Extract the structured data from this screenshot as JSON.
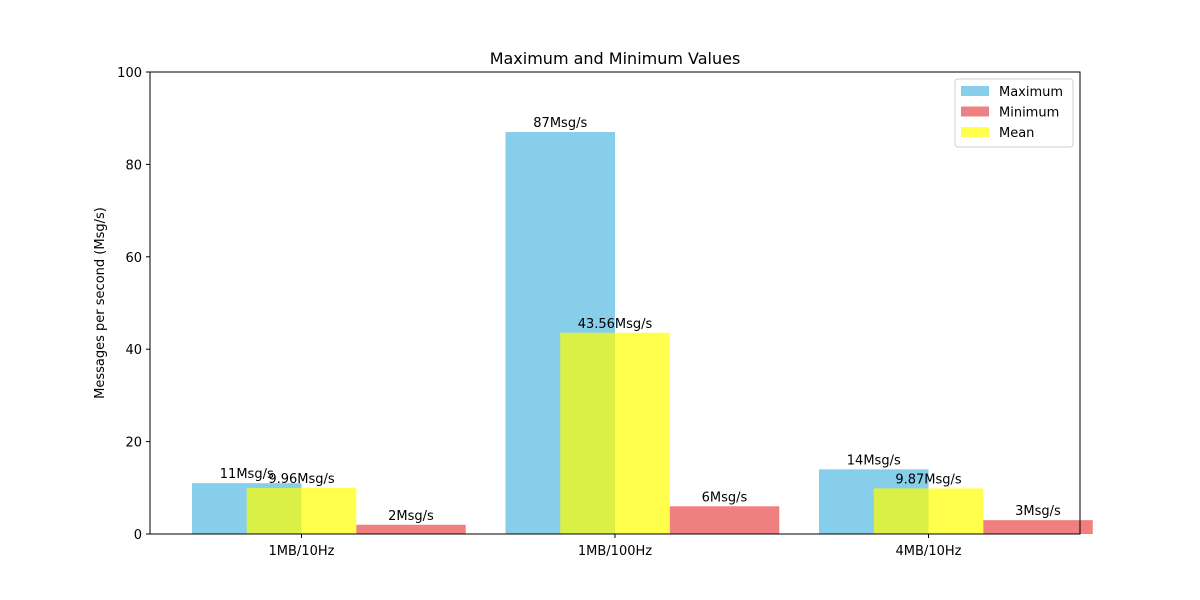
{
  "chart_data": {
    "type": "bar",
    "title": "Maximum and Minimum Values",
    "xlabel": "",
    "ylabel": "Messages per second (Msg/s)",
    "categories": [
      "1MB/10Hz",
      "1MB/100Hz",
      "4MB/10Hz"
    ],
    "ylim": [
      0,
      100
    ],
    "yticks": [
      0,
      20,
      40,
      60,
      80,
      100
    ],
    "grid": false,
    "legend_position": "top-right",
    "series": [
      {
        "name": "Maximum",
        "color": "#87ceeb",
        "values": [
          11,
          87,
          14
        ],
        "labels": [
          "11Msg/s",
          "87Msg/s",
          "14Msg/s"
        ]
      },
      {
        "name": "Minimum",
        "color": "#f08080",
        "values": [
          2,
          6,
          3
        ],
        "labels": [
          "2Msg/s",
          "6Msg/s",
          "3Msg/s"
        ]
      },
      {
        "name": "Mean",
        "color": "#ffff00",
        "opacity": 0.7,
        "values": [
          9.96,
          43.56,
          9.87
        ],
        "labels": [
          "9.96Msg/s",
          "43.56Msg/s",
          "9.87Msg/s"
        ]
      }
    ]
  }
}
